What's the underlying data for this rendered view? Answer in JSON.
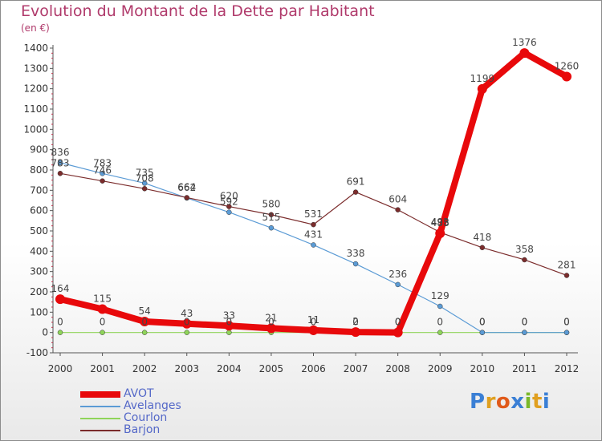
{
  "title": "Evolution du Montant de la Dette par Habitant",
  "unit": "(en €)",
  "brand": {
    "letters": [
      {
        "ch": "P",
        "color": "#3a7fd5"
      },
      {
        "ch": "r",
        "color": "#e0a020"
      },
      {
        "ch": "o",
        "color": "#e05a1a"
      },
      {
        "ch": "x",
        "color": "#3a7fd5"
      },
      {
        "ch": "i",
        "color": "#7ab82a"
      },
      {
        "ch": "t",
        "color": "#e0a020"
      },
      {
        "ch": "i",
        "color": "#3a7fd5"
      }
    ]
  },
  "chart_data": {
    "type": "line",
    "x": [
      "2000",
      "2001",
      "2002",
      "2003",
      "2004",
      "2005",
      "2006",
      "2007",
      "2008",
      "2009",
      "2010",
      "2011",
      "2012"
    ],
    "ylim": [
      -100,
      1400
    ],
    "yticks": [
      "-100",
      "0",
      "100",
      "200",
      "300",
      "400",
      "500",
      "600",
      "700",
      "800",
      "900",
      "1000",
      "1100",
      "1200",
      "1300",
      "1400"
    ],
    "grid": false,
    "legend_position": "bottom-left",
    "series": [
      {
        "name": "AVOT",
        "color": "#e8090b",
        "width": 8,
        "marker": 6,
        "values": [
          164,
          115,
          54,
          43,
          33,
          21,
          11,
          2,
          0,
          488,
          1199,
          1376,
          1260
        ],
        "labels": [
          "164",
          "115",
          "54",
          "43",
          "33",
          "21",
          "11",
          "2",
          "0",
          "488",
          "1199",
          "1376",
          "1260"
        ]
      },
      {
        "name": "Avelanges",
        "color": "#5b9bd5",
        "width": 1.2,
        "marker": 3,
        "values": [
          836,
          783,
          735,
          662,
          592,
          515,
          431,
          338,
          236,
          129,
          0,
          0,
          0
        ],
        "labels": [
          "836",
          "783",
          "735",
          "662",
          "592",
          "515",
          "431",
          "338",
          "236",
          "129",
          "0",
          "0",
          "0"
        ]
      },
      {
        "name": "Courlon",
        "color": "#8fd45a",
        "width": 1.2,
        "marker": 3,
        "values": [
          0,
          0,
          0,
          0,
          0,
          0,
          0,
          0,
          0,
          0,
          0,
          0,
          0
        ],
        "labels": [
          "0",
          "0",
          "0",
          "0",
          "0",
          "0",
          "0",
          "0",
          "0",
          "0",
          "0",
          "0",
          "0"
        ]
      },
      {
        "name": "Barjon",
        "color": "#7b2c2c",
        "width": 1.2,
        "marker": 3,
        "values": [
          783,
          746,
          708,
          664,
          620,
          580,
          531,
          691,
          604,
          493,
          418,
          358,
          281
        ],
        "labels": [
          "783",
          "746",
          "708",
          "664",
          "620",
          "580",
          "531",
          "691",
          "604",
          "493",
          "418",
          "358",
          "281"
        ]
      }
    ]
  }
}
